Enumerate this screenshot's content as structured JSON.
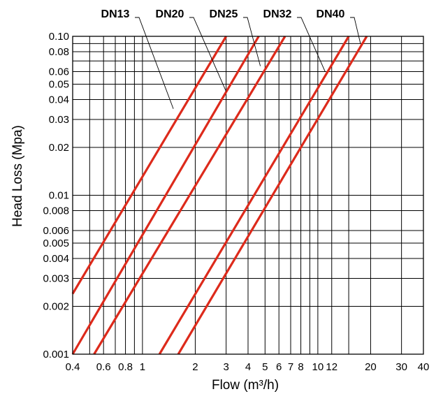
{
  "chart_data": {
    "type": "line",
    "xscale": "log",
    "yscale": "log",
    "xlabel": "Flow (m³/h)",
    "ylabel": "Head Loss (Mpa)",
    "xlim": [
      0.4,
      40
    ],
    "ylim": [
      0.001,
      0.1
    ],
    "grid": true,
    "legend": "top",
    "x_ticks": [
      0.4,
      0.6,
      0.8,
      1,
      2,
      3,
      4,
      5,
      6,
      7,
      8,
      10,
      12,
      20,
      30,
      40
    ],
    "x_tick_labels": [
      "0.4",
      "0.6",
      "0.8",
      "1",
      "2",
      "3",
      "4",
      "5",
      "6",
      "7",
      "8",
      "10",
      "12",
      "20",
      "30",
      "40"
    ],
    "y_ticks": [
      0.001,
      0.002,
      0.003,
      0.004,
      0.005,
      0.006,
      0.008,
      0.01,
      0.02,
      0.03,
      0.04,
      0.05,
      0.06,
      0.08,
      0.1
    ],
    "y_tick_labels": [
      "0.001",
      "0.002",
      "0.003",
      "0.004",
      "0.005",
      "0.006",
      "0.008",
      "0.01",
      "0.02",
      "0.03",
      "0.04",
      "0.05",
      "0.06",
      "0.08",
      "0.10"
    ],
    "x_grid": [
      0.4,
      0.5,
      0.6,
      0.7,
      0.8,
      0.9,
      1,
      2,
      3,
      4,
      5,
      6,
      7,
      8,
      9,
      10,
      12,
      15,
      20,
      30,
      40
    ],
    "y_grid": [
      0.001,
      0.002,
      0.003,
      0.004,
      0.005,
      0.006,
      0.008,
      0.01,
      0.02,
      0.03,
      0.04,
      0.05,
      0.06,
      0.07,
      0.08,
      0.09,
      0.1
    ],
    "series_color": "#dd2a1b",
    "series": [
      {
        "name": "DN13",
        "points": [
          [
            0.4,
            0.0024
          ],
          [
            3.0,
            0.1
          ]
        ],
        "label_anchor": [
          1.5,
          0.035
        ]
      },
      {
        "name": "DN20",
        "points": [
          [
            0.4,
            0.001
          ],
          [
            4.6,
            0.1
          ]
        ],
        "label_anchor": [
          3.0,
          0.045
        ]
      },
      {
        "name": "DN25",
        "points": [
          [
            0.53,
            0.001
          ],
          [
            6.5,
            0.1
          ]
        ],
        "label_anchor": [
          4.7,
          0.065
        ]
      },
      {
        "name": "DN32",
        "points": [
          [
            1.25,
            0.001
          ],
          [
            15.0,
            0.1
          ]
        ],
        "label_anchor": [
          11.0,
          0.06
        ]
      },
      {
        "name": "DN40",
        "points": [
          [
            1.6,
            0.001
          ],
          [
            19.0,
            0.1
          ]
        ],
        "label_anchor": [
          17.5,
          0.09
        ]
      }
    ]
  }
}
